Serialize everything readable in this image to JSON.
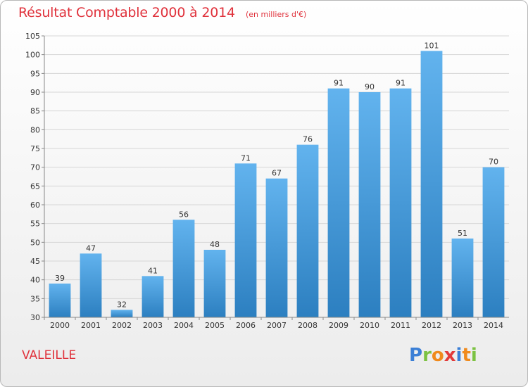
{
  "title": "Résultat Comptable 2000 à 2014",
  "subtitle": "(en milliers d'€)",
  "commune": "VALEILLE",
  "brand": {
    "letters": [
      "P",
      "r",
      "o",
      "x",
      "i",
      "t",
      "i"
    ],
    "colors": [
      "#3b7fd6",
      "#7cc242",
      "#f08a1c",
      "#e23a3a",
      "#3b7fd6",
      "#f08a1c",
      "#7cc242"
    ]
  },
  "colors": {
    "title": "#e0323c",
    "bar_top": "#62b3ee",
    "bar_bottom": "#2c7fc0"
  },
  "chart_data": {
    "type": "bar",
    "categories": [
      "2000",
      "2001",
      "2002",
      "2003",
      "2004",
      "2005",
      "2006",
      "2007",
      "2008",
      "2009",
      "2010",
      "2011",
      "2012",
      "2013",
      "2014"
    ],
    "values": [
      39,
      47,
      32,
      41,
      56,
      48,
      71,
      67,
      76,
      91,
      90,
      91,
      101,
      51,
      70
    ],
    "ylim": [
      30,
      105
    ],
    "yticks": [
      30,
      35,
      40,
      45,
      50,
      55,
      60,
      65,
      70,
      75,
      80,
      85,
      90,
      95,
      100,
      105
    ],
    "title": "Résultat Comptable 2000 à 2014",
    "xlabel": "",
    "ylabel": "",
    "grid": true,
    "data_labels": true
  }
}
